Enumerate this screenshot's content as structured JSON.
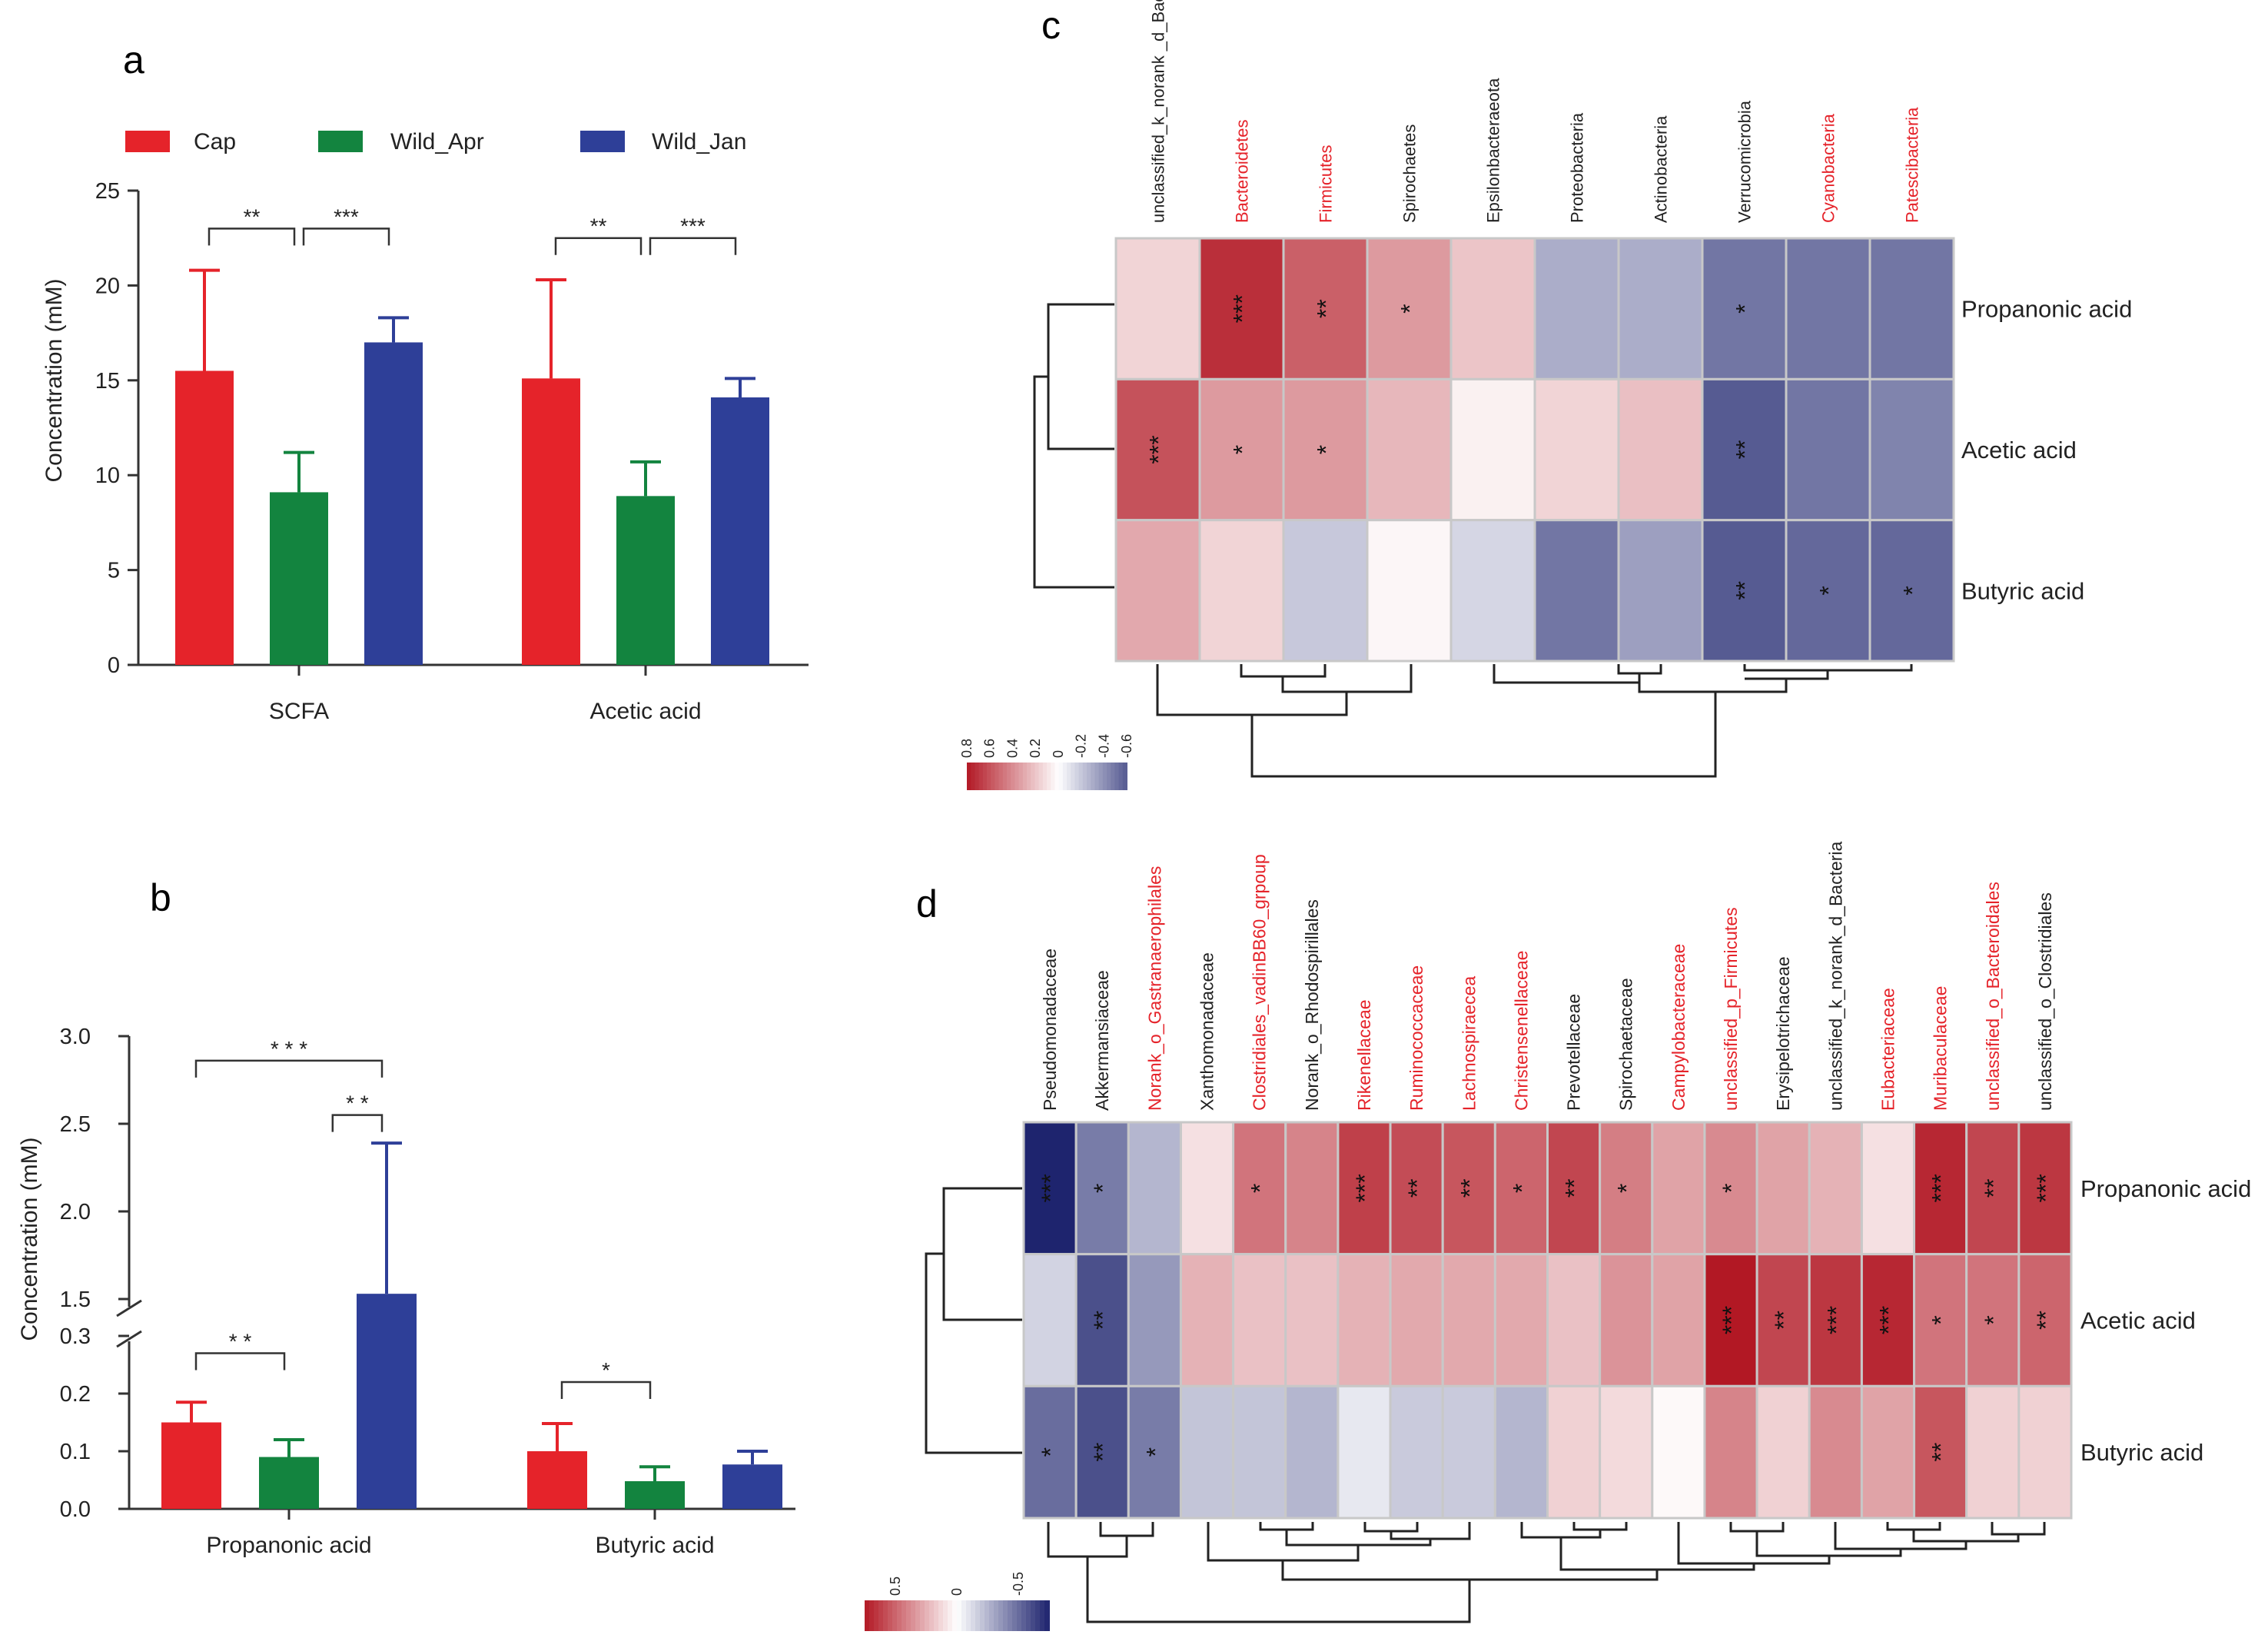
{
  "panels": {
    "a": "a",
    "b": "b",
    "c": "c",
    "d": "d"
  },
  "legend": [
    {
      "name": "Cap",
      "color": "#e5232a"
    },
    {
      "name": "Wild_Apr",
      "color": "#13843f"
    },
    {
      "name": "Wild_Jan",
      "color": "#2e3f98"
    }
  ],
  "chart_data": [
    {
      "id": "a",
      "type": "bar",
      "title": "",
      "ylabel": "Concentration (mM)",
      "xlabel": "",
      "ylim": [
        0,
        25
      ],
      "yticks": [
        "0",
        "5",
        "10",
        "15",
        "20",
        "25"
      ],
      "categories": [
        "SCFA",
        "Acetic acid"
      ],
      "series": [
        {
          "name": "Cap",
          "values": [
            15.5,
            15.1
          ],
          "errors": [
            5.3,
            5.2
          ]
        },
        {
          "name": "Wild_Apr",
          "values": [
            9.1,
            8.9
          ],
          "errors": [
            2.1,
            1.8
          ]
        },
        {
          "name": "Wild_Jan",
          "values": [
            17.0,
            14.1
          ],
          "errors": [
            1.3,
            1.0
          ]
        }
      ],
      "brackets": [
        {
          "cat": 0,
          "from": 0,
          "to": 1,
          "label": "**",
          "level": 23.0
        },
        {
          "cat": 0,
          "from": 1,
          "to": 2,
          "label": "***",
          "level": 23.0
        },
        {
          "cat": 1,
          "from": 0,
          "to": 1,
          "label": "**",
          "level": 22.5
        },
        {
          "cat": 1,
          "from": 1,
          "to": 2,
          "label": "***",
          "level": 22.5
        }
      ]
    },
    {
      "id": "b",
      "type": "bar",
      "title": "",
      "ylabel": "Concentration (mM)",
      "xlabel": "",
      "axis_break": [
        0.3,
        1.5
      ],
      "ylim": [
        0,
        3.0
      ],
      "yticks_lower": [
        "0.0",
        "0.1",
        "0.2",
        "0.3"
      ],
      "yticks_upper": [
        "1.5",
        "2.0",
        "2.5",
        "3.0"
      ],
      "categories": [
        "Propanonic acid",
        "Butyric acid"
      ],
      "series": [
        {
          "name": "Cap",
          "values": [
            0.15,
            0.1
          ],
          "errors": [
            0.035,
            0.048
          ]
        },
        {
          "name": "Wild_Apr",
          "values": [
            0.09,
            0.048
          ],
          "errors": [
            0.03,
            0.025
          ]
        },
        {
          "name": "Wild_Jan",
          "values": [
            1.53,
            0.077
          ],
          "errors": [
            0.86,
            0.023
          ]
        }
      ],
      "brackets": [
        {
          "cat": 0,
          "from": 0,
          "to": 1,
          "label": "* *",
          "level": 0.27
        },
        {
          "cat": 0,
          "from": 2,
          "to": 2,
          "label": "* *",
          "level": 2.55,
          "from_x_extra": -0.6
        },
        {
          "cat": 0,
          "from": 0,
          "to": 2,
          "label": "* * *",
          "level": 2.86
        },
        {
          "cat": 1,
          "from": 0,
          "to": 1,
          "label": "*",
          "level": 0.22
        }
      ]
    },
    {
      "id": "c",
      "type": "heatmap",
      "columns": [
        "unclassified_k_norank _d_Bacteria",
        "Bacteroidetes",
        "Firmicutes",
        "Spirochaetes",
        "Epsilonbacteraeota",
        "Proteobacteria",
        "Actinobacteria",
        "Verrucomicrobia",
        "Cyanobacteria",
        "Patescibacteria"
      ],
      "highlighted_columns": [
        1,
        2,
        8,
        9
      ],
      "rows": [
        "Propanonic acid",
        "Acetic acid",
        "Butyric acid"
      ],
      "values": [
        [
          0.15,
          0.72,
          0.55,
          0.35,
          0.2,
          -0.3,
          -0.3,
          -0.5,
          -0.5,
          -0.5
        ],
        [
          0.6,
          0.35,
          0.35,
          0.25,
          0.05,
          0.15,
          0.22,
          -0.6,
          -0.5,
          -0.45
        ],
        [
          0.3,
          0.15,
          -0.2,
          0.03,
          -0.15,
          -0.5,
          -0.35,
          -0.6,
          -0.55,
          -0.55
        ]
      ],
      "stars": [
        [
          "",
          "***",
          "**",
          "*",
          "",
          "",
          "",
          "*",
          "",
          ""
        ],
        [
          "***",
          "*",
          "*",
          "",
          "",
          "",
          "",
          "**",
          "",
          ""
        ],
        [
          "",
          "",
          "",
          "",
          "",
          "",
          "",
          "**",
          "*",
          "*"
        ]
      ],
      "colorbar": {
        "ticks": [
          "0.8",
          "0.6",
          "0.4",
          "0.2",
          "0",
          "-0.2",
          "-0.4",
          "-0.6"
        ],
        "range": [
          0.8,
          -0.6
        ]
      }
    },
    {
      "id": "d",
      "type": "heatmap",
      "columns": [
        "Pseudomonadaceae",
        "Akkermansiaceae",
        "Norank_o_Gastranaerophilales",
        "Xanthomonadaceae",
        "Clostridiales_vadinBB60_grpoup",
        "Norank_o_Rhodospirillales",
        "Rikenellaceae",
        "Ruminococcaceae",
        "Lachnospiraecea",
        "Christensenellaceae",
        "Prevotellaceae",
        "Spirochaetaceae",
        "Campylobacteraceae",
        "unclassified_p_Firmicutes",
        "Erysipelotrichaceae",
        "unclassified_k_norank_d_Bacteria",
        "Eubacteriaceae",
        "Muribaculaceae",
        "unclassified_o_Bacteroidales",
        "unclassified_o_Clostridiales"
      ],
      "highlighted_columns": [
        2,
        4,
        6,
        7,
        8,
        9,
        12,
        13,
        16,
        17,
        18
      ],
      "rows": [
        "Propanonic acid",
        "Acetic acid",
        "Butyric acid"
      ],
      "values": [
        [
          -0.75,
          -0.45,
          -0.25,
          0.1,
          0.45,
          0.4,
          0.62,
          0.58,
          0.55,
          0.5,
          0.6,
          0.42,
          0.3,
          0.38,
          0.3,
          0.25,
          0.1,
          0.7,
          0.6,
          0.65
        ],
        [
          -0.15,
          -0.6,
          -0.35,
          0.25,
          0.2,
          0.2,
          0.25,
          0.28,
          0.28,
          0.28,
          0.2,
          0.35,
          0.3,
          0.75,
          0.6,
          0.65,
          0.7,
          0.45,
          0.45,
          0.5
        ],
        [
          -0.5,
          -0.6,
          -0.45,
          -0.2,
          -0.2,
          -0.25,
          -0.08,
          -0.18,
          -0.18,
          -0.25,
          0.15,
          0.12,
          0.02,
          0.4,
          0.15,
          0.38,
          0.3,
          0.55,
          0.15,
          0.15
        ]
      ],
      "stars": [
        [
          "***",
          "*",
          "",
          "",
          "*",
          "",
          "***",
          "**",
          "**",
          "*",
          "**",
          "*",
          "",
          "*",
          "",
          "",
          "",
          "***",
          "**",
          "***"
        ],
        [
          "",
          "**",
          "",
          "",
          "",
          "",
          "",
          "",
          "",
          "",
          "",
          "",
          "",
          "***",
          "**",
          "***",
          "***",
          "*",
          "*",
          "**"
        ],
        [
          "*",
          "**",
          "*",
          "",
          "",
          "",
          "",
          "",
          "",
          "",
          "",
          "",
          "",
          "",
          "",
          "",
          "",
          "**",
          "",
          ""
        ]
      ],
      "colorbar": {
        "ticks": [
          "0.5",
          "0",
          "-0.5"
        ],
        "range": [
          0.75,
          -0.75
        ]
      }
    }
  ]
}
